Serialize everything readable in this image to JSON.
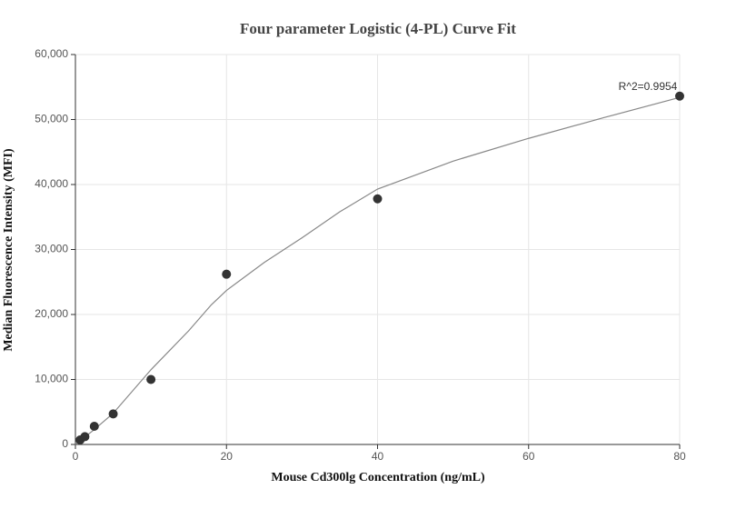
{
  "chart_data": {
    "type": "scatter",
    "title": "Four parameter Logistic (4-PL) Curve Fit",
    "x_label": "Mouse Cd300lg Concentration (ng/mL)",
    "y_label": "Median Fluorescence Intensity (MFI)",
    "annotation": "R^2=0.9954",
    "x": [
      0.625,
      1.25,
      2.5,
      5,
      10,
      20,
      40,
      80
    ],
    "values": [
      700,
      1200,
      2800,
      4700,
      10000,
      26200,
      37800,
      53600
    ],
    "color": "#333333",
    "fit": {
      "color": "#888888",
      "x": [
        0,
        2.5,
        5,
        10,
        15,
        18,
        20,
        25,
        30,
        35,
        40,
        50,
        60,
        70,
        80
      ],
      "values": [
        0,
        2300,
        4800,
        11500,
        17500,
        21500,
        23700,
        28000,
        31800,
        35800,
        39300,
        43600,
        47100,
        50300,
        53400
      ]
    },
    "xlim": [
      0,
      80
    ],
    "xticks": [
      0,
      20,
      40,
      60,
      80
    ],
    "ylim": [
      0,
      60000
    ],
    "yticks": [
      0,
      {
        "value": 10000,
        "label": "10,000"
      },
      {
        "value": 20000,
        "label": "20,000"
      },
      {
        "value": 30000,
        "label": "30,000"
      },
      {
        "value": 40000,
        "label": "40,000"
      },
      {
        "value": 50000,
        "label": "50,000"
      },
      {
        "value": 60000,
        "label": "60,000"
      }
    ],
    "grid": true
  }
}
